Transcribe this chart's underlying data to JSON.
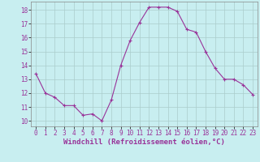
{
  "x": [
    0,
    1,
    2,
    3,
    4,
    5,
    6,
    7,
    8,
    9,
    10,
    11,
    12,
    13,
    14,
    15,
    16,
    17,
    18,
    19,
    20,
    21,
    22,
    23
  ],
  "y": [
    13.4,
    12.0,
    11.7,
    11.1,
    11.1,
    10.4,
    10.5,
    10.0,
    11.5,
    14.0,
    15.8,
    17.1,
    18.2,
    18.2,
    18.2,
    17.9,
    16.6,
    16.4,
    15.0,
    13.8,
    13.0,
    13.0,
    12.6,
    11.9
  ],
  "line_color": "#993399",
  "marker": "+",
  "marker_size": 3,
  "bg_color": "#c8eef0",
  "grid_color": "#aacccc",
  "xlabel": "Windchill (Refroidissement éolien,°C)",
  "xlabel_color": "#993399",
  "ylabel_ticks": [
    10,
    11,
    12,
    13,
    14,
    15,
    16,
    17,
    18
  ],
  "xtick_labels": [
    "0",
    "1",
    "2",
    "3",
    "4",
    "5",
    "6",
    "7",
    "8",
    "9",
    "10",
    "11",
    "12",
    "13",
    "14",
    "15",
    "16",
    "17",
    "18",
    "19",
    "20",
    "21",
    "22",
    "23"
  ],
  "ylim": [
    9.6,
    18.6
  ],
  "xlim": [
    -0.5,
    23.5
  ],
  "tick_fontsize": 5.5,
  "xlabel_fontsize": 6.5,
  "xlabel_bold": true
}
